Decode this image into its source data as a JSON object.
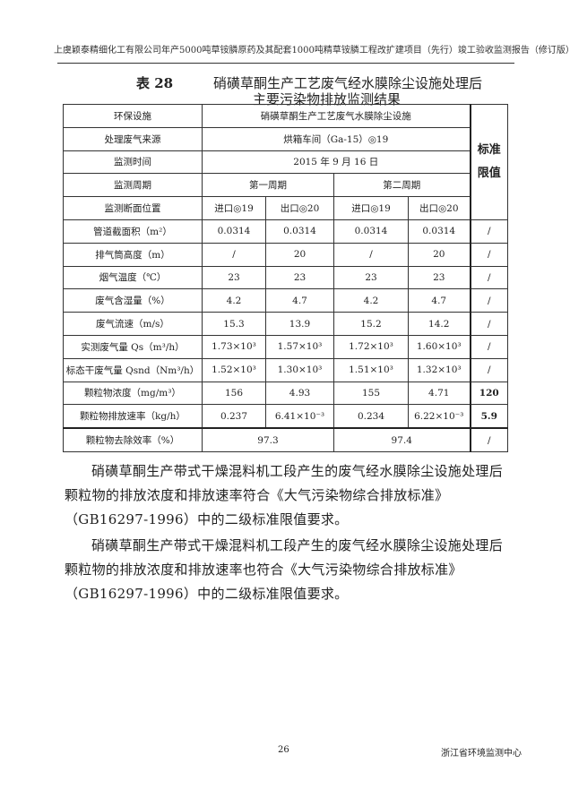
{
  "header": {
    "running_title": "上虞颖泰精细化工有限公司年产5000吨草铵膦原药及其配套1000吨精草铵膦工程改扩建项目（先行）竣工验收监测报告（修订版）"
  },
  "table": {
    "number": "表 28",
    "title_line1": "硝磺草酮生产工艺废气经水膜除尘设施处理后",
    "title_line2": "主要污染物排放监测结果",
    "standard_header": [
      "标准",
      "限值"
    ],
    "facility_label": "环保设施",
    "facility_value": "硝磺草酮生产工艺废气水膜除尘设施",
    "source_label": "处理废气来源",
    "source_value": "烘箱车间（Ga-15）◎19",
    "time_label": "监测时间",
    "time_value": "2015 年 9 月 16 日",
    "cycle_label": "监测周期",
    "cycles": [
      "第一周期",
      "第二周期"
    ],
    "position_label": "监测断面位置",
    "positions": [
      "进口◎19",
      "出口◎20",
      "进口◎19",
      "出口◎20"
    ],
    "rows": [
      {
        "label": "管道截面积（m²）",
        "values": [
          "0.0314",
          "0.0314",
          "0.0314",
          "0.0314"
        ],
        "std": "/"
      },
      {
        "label": "排气筒高度（m）",
        "values": [
          "/",
          "20",
          "/",
          "20"
        ],
        "std": "/"
      },
      {
        "label": "烟气温度（℃）",
        "values": [
          "23",
          "23",
          "23",
          "23"
        ],
        "std": "/"
      },
      {
        "label": "废气含湿量（%）",
        "values": [
          "4.2",
          "4.7",
          "4.2",
          "4.7"
        ],
        "std": "/"
      },
      {
        "label": "废气流速（m/s）",
        "values": [
          "15.3",
          "13.9",
          "15.2",
          "14.2"
        ],
        "std": "/"
      },
      {
        "label": "实测废气量 Qs（m³/h）",
        "values": [
          "1.73×10³",
          "1.57×10³",
          "1.72×10³",
          "1.60×10³"
        ],
        "std": "/"
      },
      {
        "label": "标态干废气量 Qsnd（Nm³/h）",
        "values": [
          "1.52×10³",
          "1.30×10³",
          "1.51×10³",
          "1.32×10³"
        ],
        "std": "/"
      },
      {
        "label": "颗粒物浓度（mg/m³）",
        "values": [
          "156",
          "4.93",
          "155",
          "4.71"
        ],
        "std": "120"
      },
      {
        "label": "颗粒物排放速率（kg/h）",
        "values": [
          "0.237",
          "6.41×10⁻³",
          "0.234",
          "6.22×10⁻³"
        ],
        "std": "5.9"
      }
    ],
    "removal_label": "颗粒物去除效率（%）",
    "removal_values": [
      "97.3",
      "97.4"
    ],
    "removal_std": "/"
  },
  "paragraphs": [
    "硝磺草酮生产带式干燥混料机工段产生的废气经水膜除尘设施处理后颗粒物的排放浓度和排放速率符合《大气污染物综合排放标准》（GB16297-1996）中的二级标准限值要求。",
    "硝磺草酮生产带式干燥混料机工段产生的废气经水膜除尘设施处理后颗粒物的排放浓度和排放速率也符合《大气污染物综合排放标准》（GB16297-1996）中的二级标准限值要求。"
  ],
  "footer": {
    "page_number": "26",
    "organization": "浙江省环境监测中心"
  }
}
